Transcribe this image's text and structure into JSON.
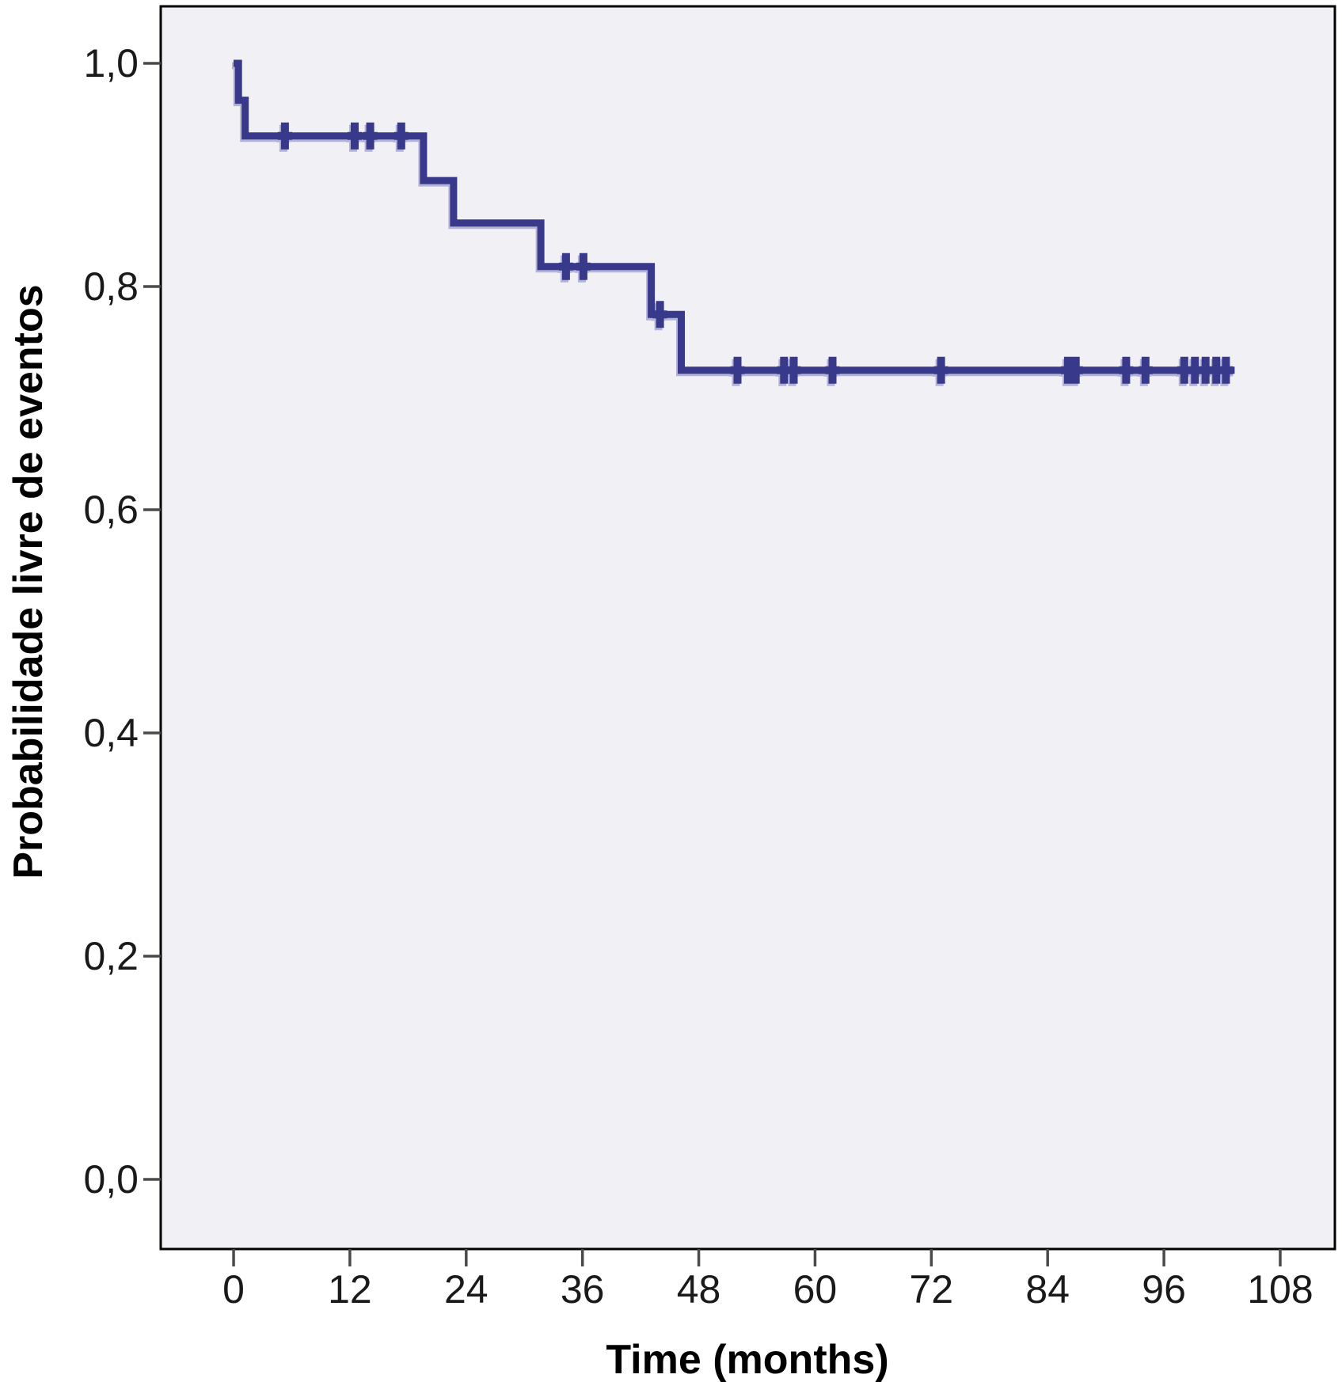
{
  "page": {
    "background_color": "#ffffff"
  },
  "chart_data": {
    "type": "line",
    "variant": "kaplan_meier_step_curve",
    "title": "",
    "xlabel": "Time (months)",
    "ylabel": "Probabilidade livre de eventos",
    "legend_position": "none",
    "grid": "off",
    "plot_background_color": "#f1f0f5",
    "line_color": "#39398c",
    "line_shadow_color": "#a8a8d0",
    "frame_color": "#000000",
    "tick_color": "#4a4a4a",
    "tick_label_color": "#1a1a1a",
    "xlim": [
      -7.52,
      113.64
    ],
    "ylim": [
      -0.0624,
      1.0511
    ],
    "x_tick_values": [
      0,
      12,
      24,
      36,
      48,
      60,
      72,
      84,
      96,
      108
    ],
    "x_tick_labels": [
      "0",
      "12",
      "24",
      "36",
      "48",
      "60",
      "72",
      "84",
      "96",
      "108"
    ],
    "y_tick_values": [
      0.0,
      0.2,
      0.4,
      0.6,
      0.8,
      1.0
    ],
    "y_tick_labels": [
      "0,0",
      "0,2",
      "0,4",
      "0,6",
      "0,8",
      "1,0"
    ],
    "series": [
      {
        "name": "event-free probability",
        "steps": [
          [
            0,
            1.0
          ],
          [
            0.5,
            1.0
          ],
          [
            0.5,
            0.967
          ],
          [
            1.2,
            0.967
          ],
          [
            1.2,
            0.935
          ],
          [
            19.6,
            0.935
          ],
          [
            19.6,
            0.895
          ],
          [
            22.7,
            0.895
          ],
          [
            22.7,
            0.857
          ],
          [
            31.7,
            0.857
          ],
          [
            31.7,
            0.818
          ],
          [
            43.1,
            0.818
          ],
          [
            43.1,
            0.775
          ],
          [
            46.2,
            0.775
          ],
          [
            46.2,
            0.725
          ],
          [
            103.3,
            0.725
          ]
        ],
        "censors": [
          [
            5.3,
            0.935
          ],
          [
            12.5,
            0.935
          ],
          [
            14.1,
            0.935
          ],
          [
            17.3,
            0.935
          ],
          [
            34.3,
            0.818
          ],
          [
            36.1,
            0.818
          ],
          [
            44.0,
            0.775
          ],
          [
            52.0,
            0.725
          ],
          [
            56.8,
            0.725
          ],
          [
            57.8,
            0.725
          ],
          [
            61.8,
            0.725
          ],
          [
            73.0,
            0.725
          ],
          [
            86.1,
            0.725
          ],
          [
            86.9,
            0.725
          ],
          [
            92.1,
            0.725
          ],
          [
            94.1,
            0.725
          ],
          [
            98.1,
            0.725
          ],
          [
            99.2,
            0.725
          ],
          [
            100.3,
            0.725
          ],
          [
            101.4,
            0.725
          ],
          [
            102.4,
            0.725
          ]
        ]
      }
    ]
  }
}
